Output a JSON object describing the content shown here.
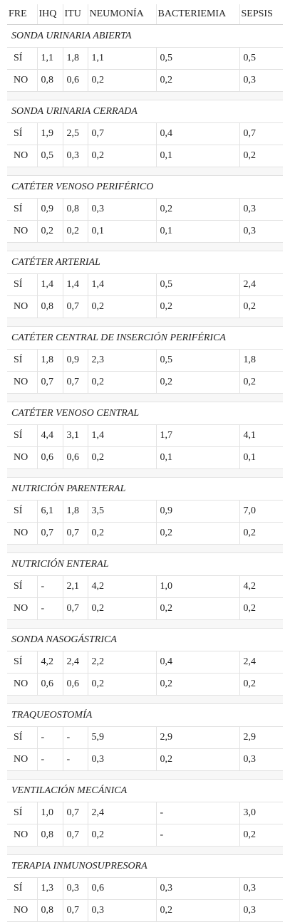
{
  "headers": [
    "FRE",
    "IHQ",
    "ITU",
    "NEUMONÍA",
    "BACTERIEMIA",
    "SEPSIS"
  ],
  "sections": [
    {
      "title": "SONDA URINARIA ABIERTA",
      "rows": [
        [
          "SÍ",
          "1,1",
          "1,8",
          "1,1",
          "0,5",
          "0,5"
        ],
        [
          "NO",
          "0,8",
          "0,6",
          "0,2",
          "0,2",
          "0,3"
        ]
      ]
    },
    {
      "title": "SONDA URINARIA CERRADA",
      "rows": [
        [
          "SÍ",
          "1,9",
          "2,5",
          "0,7",
          "0,4",
          "0,7"
        ],
        [
          "NO",
          "0,5",
          "0,3",
          "0,2",
          "0,1",
          "0,2"
        ]
      ]
    },
    {
      "title": "CATÉTER VENOSO PERIFÉRICO",
      "rows": [
        [
          "SÍ",
          "0,9",
          "0,8",
          "0,3",
          "0,2",
          "0,3"
        ],
        [
          "NO",
          "0,2",
          "0,2",
          "0,1",
          "0,1",
          "0,3"
        ]
      ]
    },
    {
      "title": "CATÉTER ARTERIAL",
      "rows": [
        [
          "SÍ",
          "1,4",
          "1,4",
          "1,4",
          "0,5",
          "2,4"
        ],
        [
          "NO",
          "0,8",
          "0,7",
          "0,2",
          "0,2",
          "0,2"
        ]
      ]
    },
    {
      "title": "CATÉTER CENTRAL DE INSERCIÓN PERIFÉRICA",
      "rows": [
        [
          "SÍ",
          "1,8",
          "0,9",
          "2,3",
          "0,5",
          "1,8"
        ],
        [
          "NO",
          "0,7",
          "0,7",
          "0,2",
          "0,2",
          "0,2"
        ]
      ]
    },
    {
      "title": "CATÉTER VENOSO CENTRAL",
      "rows": [
        [
          "SÍ",
          "4,4",
          "3,1",
          "1,4",
          "1,7",
          "4,1"
        ],
        [
          "NO",
          "0,6",
          "0,6",
          "0,2",
          "0,1",
          "0,1"
        ]
      ]
    },
    {
      "title": "NUTRICIÓN PARENTERAL",
      "rows": [
        [
          "SÍ",
          "6,1",
          "1,8",
          "3,5",
          "0,9",
          "7,0"
        ],
        [
          "NO",
          "0,7",
          "0,7",
          "0,2",
          "0,2",
          "0,2"
        ]
      ]
    },
    {
      "title": "NUTRICIÓN ENTERAL",
      "rows": [
        [
          "SÍ",
          "-",
          "2,1",
          "4,2",
          "1,0",
          "4,2"
        ],
        [
          "NO",
          "-",
          "0,7",
          "0,2",
          "0,2",
          "0,2"
        ]
      ]
    },
    {
      "title": "SONDA NASOGÁSTRICA",
      "rows": [
        [
          "SÍ",
          "4,2",
          "2,4",
          "2,2",
          "0,4",
          "2,4"
        ],
        [
          "NO",
          "0,6",
          "0,6",
          "0,2",
          "0,2",
          "0,2"
        ]
      ]
    },
    {
      "title": "TRAQUEOSTOMÍA",
      "rows": [
        [
          "SÍ",
          "-",
          "-",
          "5,9",
          "2,9",
          "2,9"
        ],
        [
          "NO",
          "-",
          "-",
          "0,3",
          "0,2",
          "0,3"
        ]
      ]
    },
    {
      "title": "VENTILACIÓN MECÁNICA",
      "rows": [
        [
          "SÍ",
          "1,0",
          "0,7",
          "2,4",
          "-",
          "3,0"
        ],
        [
          "NO",
          "0,8",
          "0,7",
          "0,2",
          "-",
          "0,2"
        ]
      ]
    },
    {
      "title": "TERAPIA INMUNOSUPRESORA",
      "rows": [
        [
          "SÍ",
          "1,3",
          "0,3",
          "0,6",
          "0,3",
          "0,3"
        ],
        [
          "NO",
          "0,8",
          "0,7",
          "0,3",
          "0,2",
          "0,3"
        ]
      ]
    }
  ]
}
